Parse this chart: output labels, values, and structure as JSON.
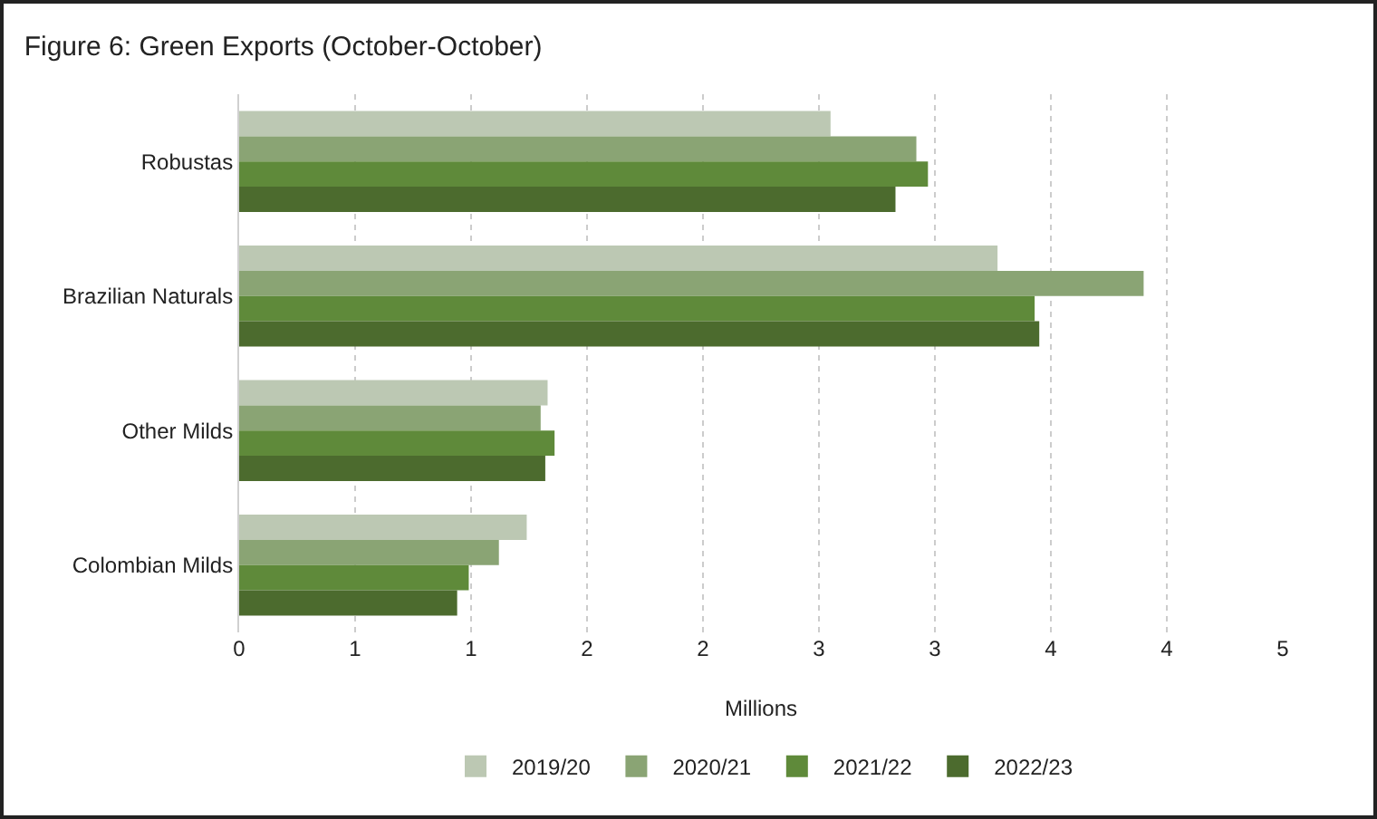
{
  "chart_data": {
    "type": "bar",
    "orientation": "horizontal",
    "title": "Figure 6: Green Exports (October-October)",
    "xlabel": "Millions",
    "categories": [
      "Robustas",
      "Brazilian Naturals",
      "Other Milds",
      "Colombian Milds"
    ],
    "series": [
      {
        "name": "2019/20",
        "color": "#bcc8b3",
        "values": [
          2.55,
          3.27,
          1.33,
          1.24
        ]
      },
      {
        "name": "2020/21",
        "color": "#8aa474",
        "values": [
          2.92,
          3.9,
          1.3,
          1.12
        ]
      },
      {
        "name": "2021/22",
        "color": "#5f8a3a",
        "values": [
          2.97,
          3.43,
          1.36,
          0.99
        ]
      },
      {
        "name": "2022/23",
        "color": "#4c6b2e",
        "values": [
          2.83,
          3.45,
          1.32,
          0.94
        ]
      }
    ],
    "xlim": [
      0,
      4.5
    ],
    "xticks": [
      0,
      {
        "value": 0.5,
        "label": "1"
      },
      1,
      {
        "value": 1.5,
        "label": "2"
      },
      2,
      {
        "value": 2.5,
        "label": "3"
      },
      3,
      {
        "value": 3.5,
        "label": "4"
      },
      4,
      {
        "value": 4.5,
        "label": "5"
      }
    ],
    "grid": "x",
    "legend": "bottom"
  }
}
